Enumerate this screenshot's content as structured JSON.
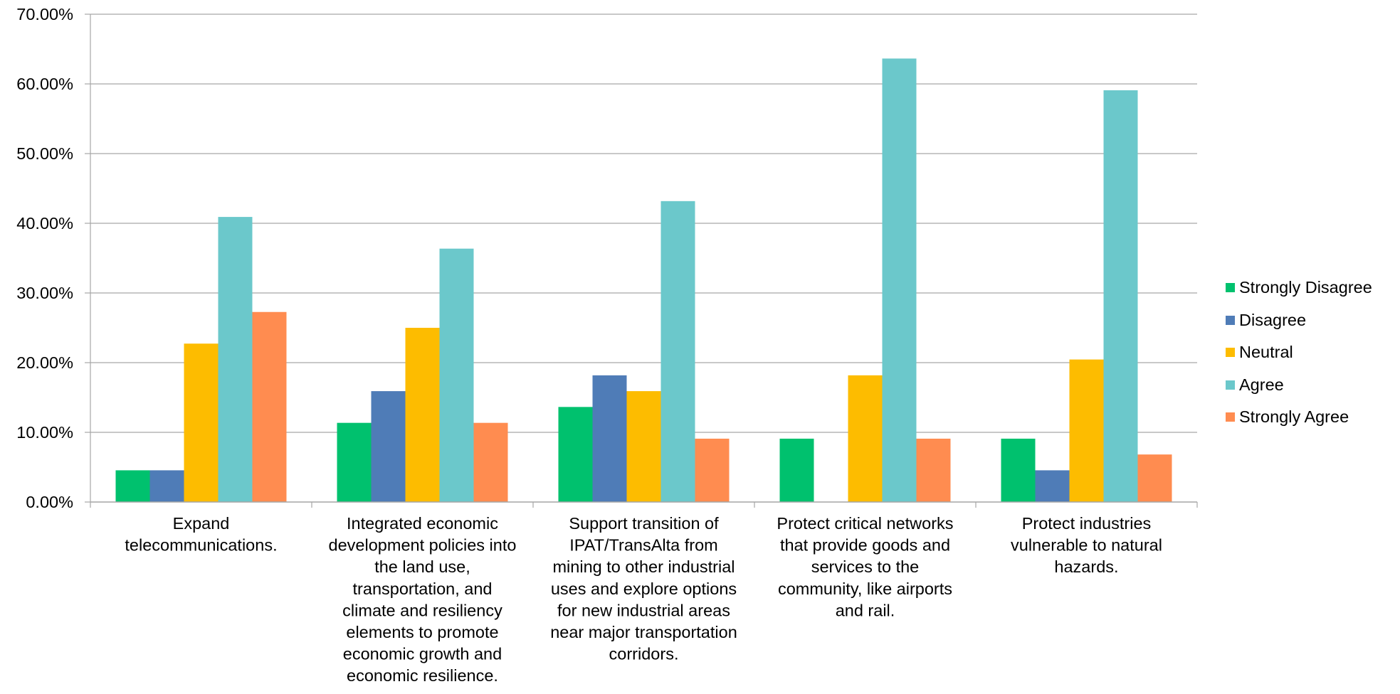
{
  "chart_data": {
    "type": "bar",
    "title": "",
    "xlabel": "",
    "ylabel": "",
    "ylim": [
      0,
      0.7
    ],
    "y_ticks": [
      "0.00%",
      "10.00%",
      "20.00%",
      "30.00%",
      "40.00%",
      "50.00%",
      "60.00%",
      "70.00%"
    ],
    "grid": true,
    "legend_position": "right",
    "categories": [
      "Expand telecommunications.",
      "Integrated economic development policies into the land use, transportation, and climate and resiliency elements to promote economic growth and economic resilience.",
      "Support transition of IPAT/TransAlta from mining to other industrial uses and explore options for new industrial areas near major transportation corridors.",
      "Protect critical networks that provide goods and services to the community, like airports and rail.",
      "Protect industries vulnerable to natural hazards."
    ],
    "category_lines": [
      [
        "Expand",
        "telecommunications."
      ],
      [
        "Integrated economic",
        "development policies into",
        "the land use,",
        "transportation, and",
        "climate and resiliency",
        "elements to promote",
        "economic growth and",
        "economic resilience."
      ],
      [
        "Support transition of",
        "IPAT/TransAlta from",
        "mining to other industrial",
        "uses and explore options",
        "for new industrial areas",
        "near major transportation",
        "corridors."
      ],
      [
        "Protect critical networks",
        "that provide goods and",
        "services to the",
        "community, like airports",
        "and rail."
      ],
      [
        "Protect industries",
        "vulnerable to natural",
        "hazards."
      ]
    ],
    "series": [
      {
        "name": "Strongly Disagree",
        "color": "#00C16E",
        "values": [
          0.0455,
          0.1136,
          0.1364,
          0.0909,
          0.0909
        ]
      },
      {
        "name": "Disagree",
        "color": "#4F7CB7",
        "values": [
          0.0455,
          0.1591,
          0.1818,
          0.0,
          0.0455
        ]
      },
      {
        "name": "Neutral",
        "color": "#FDBC00",
        "values": [
          0.2273,
          0.25,
          0.1591,
          0.1818,
          0.2045
        ]
      },
      {
        "name": "Agree",
        "color": "#6BC8CB",
        "values": [
          0.4091,
          0.3636,
          0.4318,
          0.6364,
          0.5909
        ]
      },
      {
        "name": "Strongly Agree",
        "color": "#FF8C50",
        "values": [
          0.2727,
          0.1136,
          0.0909,
          0.0909,
          0.0682
        ]
      }
    ]
  }
}
